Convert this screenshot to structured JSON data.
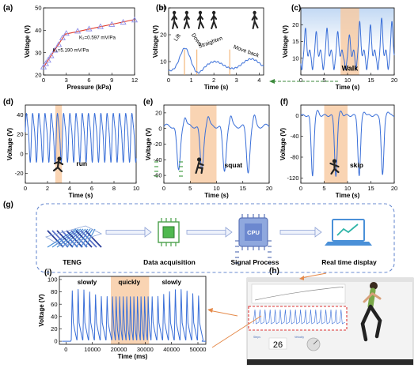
{
  "panels": {
    "a": "(a)",
    "b": "(b)",
    "c": "(c)",
    "d": "(d)",
    "e": "(e)",
    "f": "(f)",
    "g": "(g)",
    "h": "(h)",
    "i": "(i)"
  },
  "chart_data": [
    {
      "id": "a",
      "type": "scatter",
      "xlabel": "Pressure (kPa)",
      "ylabel": "Voltage (V)",
      "xlim": [
        0,
        12
      ],
      "ylim": [
        20,
        50
      ],
      "xticks": [
        0,
        3,
        6,
        9,
        12
      ],
      "yticks": [
        20,
        30,
        40,
        50
      ],
      "x": [
        0,
        0.3,
        0.6,
        1.0,
        1.5,
        2.0,
        2.5,
        3,
        4.5,
        6,
        7.5,
        9,
        10.5,
        12
      ],
      "y": [
        23.5,
        25,
        26.5,
        28.5,
        31,
        33.5,
        36.5,
        38.5,
        39.5,
        40.5,
        41.5,
        42.5,
        43.5,
        44.5
      ],
      "annotations": [
        "K₂=0.597 mV/Pa",
        "K₁=5.190 mV/Pa"
      ]
    },
    {
      "id": "b",
      "type": "line",
      "xlabel": "Time (s)",
      "ylabel": "Voltage (V)",
      "xlim": [
        0,
        4.2
      ],
      "ylim": [
        5,
        30
      ],
      "xticks": [
        0,
        1,
        2,
        3,
        4
      ],
      "yticks": [
        10,
        20,
        30
      ],
      "x": [
        0,
        0.2,
        0.4,
        0.55,
        0.7,
        0.8,
        0.9,
        1.0,
        1.1,
        1.25,
        1.45,
        1.65,
        1.9,
        2.2,
        2.5,
        2.7,
        2.8,
        3.0,
        3.3,
        3.6,
        3.9,
        4.2
      ],
      "y": [
        7,
        9,
        12,
        14.5,
        16,
        15.5,
        13.5,
        11,
        9,
        8,
        8.5,
        10,
        11,
        10.5,
        10,
        9.5,
        9,
        9,
        11,
        13,
        12.5,
        12
      ],
      "phase_markers": [
        0.7,
        1.25,
        2.7
      ],
      "annotations": [
        "Lift",
        "Down",
        "Straighten",
        "Move back"
      ]
    },
    {
      "id": "c",
      "type": "line",
      "xlabel": "Time (s)",
      "ylabel": "Voltage (V)",
      "xlim": [
        0,
        20
      ],
      "ylim": [
        5,
        25
      ],
      "xticks": [
        0,
        5,
        10,
        15,
        20
      ],
      "yticks": [
        10,
        15,
        20
      ],
      "peaks": [
        1.0,
        3.3,
        5.6,
        7.9,
        10.4,
        12.6,
        14.9,
        17.3,
        19.5
      ],
      "peak_heights": [
        19,
        18,
        19,
        18,
        17,
        21,
        20,
        22,
        21
      ],
      "baseline": 9.5,
      "highlight": [
        8.5,
        12.5
      ],
      "highlight_label": "Walk"
    },
    {
      "id": "d",
      "type": "line",
      "xlabel": "Time (s)",
      "ylabel": "Voltage (V)",
      "xlim": [
        0,
        10
      ],
      "ylim": [
        -30,
        50
      ],
      "xticks": [
        0,
        2,
        4,
        6,
        8,
        10
      ],
      "yticks": [
        -20,
        0,
        20,
        40
      ],
      "period": 0.56,
      "peak": 42,
      "trough": -4,
      "highlight": [
        2.7,
        3.3
      ],
      "highlight_label": "run"
    },
    {
      "id": "e",
      "type": "line",
      "xlabel": "Time (s)",
      "ylabel": "Voltage (V)",
      "xlim": [
        0,
        20
      ],
      "ylim": [
        -70,
        30
      ],
      "xticks": [
        0,
        5,
        10,
        15,
        20
      ],
      "yticks": [
        -60,
        -40,
        -20,
        0,
        20
      ],
      "troughs": [
        2.8,
        7.2,
        11.5,
        16.0
      ],
      "trough_depth": -55,
      "baseline": 3,
      "highlight": [
        5,
        10
      ],
      "highlight_label": "squat"
    },
    {
      "id": "f",
      "type": "line",
      "xlabel": "Time (s)",
      "ylabel": "Voltage (V)",
      "xlim": [
        0,
        20
      ],
      "ylim": [
        -130,
        20
      ],
      "xticks": [
        0,
        5,
        10,
        15,
        20
      ],
      "yticks": [
        -120,
        -80,
        -40,
        0
      ],
      "troughs": [
        2.5,
        7.5,
        12.5,
        17.5
      ],
      "trough_depth": -115,
      "baseline": 0,
      "highlight": [
        5,
        10
      ],
      "highlight_label": "skip"
    },
    {
      "id": "i",
      "type": "line",
      "xlabel": "Time (ms)",
      "ylabel": "Voltage (V)",
      "xlim": [
        -2500,
        53000
      ],
      "ylim": [
        -5,
        105
      ],
      "xticks": [
        0,
        10000,
        20000,
        30000,
        40000,
        50000
      ],
      "yticks": [
        0,
        20,
        40,
        60,
        80,
        100
      ],
      "slow_period": 2200,
      "fast_period": 1350,
      "highlight": [
        17000,
        31500
      ],
      "region_labels": [
        "slowly",
        "quickly",
        "slowly"
      ]
    }
  ],
  "diagram": {
    "stages": [
      "TENG",
      "Data acquisition",
      "Signal Process",
      "Real time display"
    ],
    "cpu_label": "CPU"
  },
  "screenshot": {
    "counter": "26",
    "field_labels": [
      "Steps",
      "Velocity"
    ]
  },
  "colors": {
    "line": "#3a6fd8",
    "highlight": "#f8c9a0",
    "marker": "#8f8fe8",
    "fit": "#e03a2a",
    "dashed_frame": "#6a8bd0",
    "arrow_green": "#3d8a3d"
  }
}
